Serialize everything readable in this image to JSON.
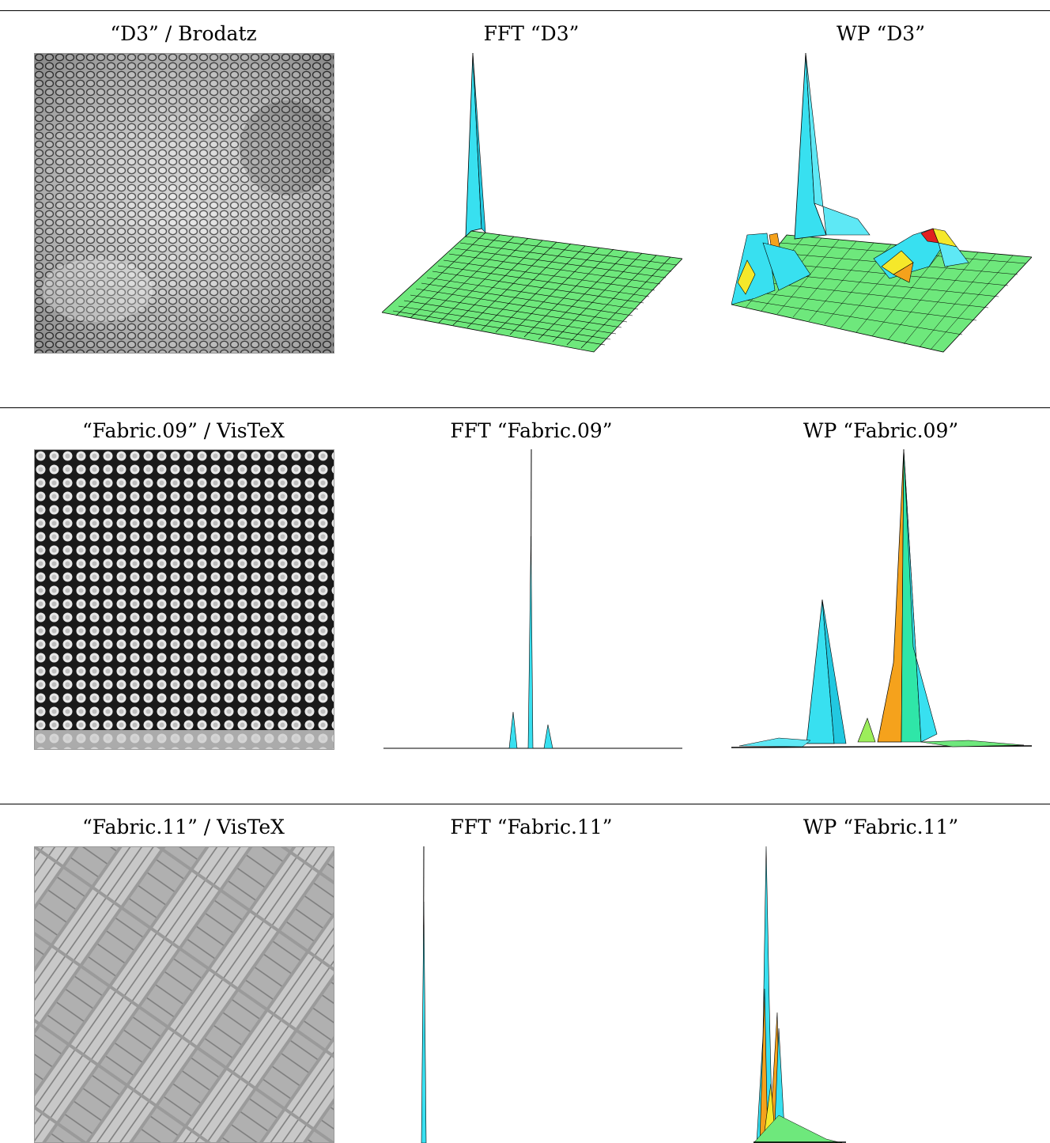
{
  "rows": [
    {
      "texture_caption": "“D3” / Brodatz",
      "fft_caption": "FFT “D3”",
      "wp_caption": "WP “D3”"
    },
    {
      "texture_caption": "“Fabric.09” / VisTeX",
      "fft_caption": "FFT “Fabric.09”",
      "wp_caption": "WP “Fabric.09”"
    },
    {
      "texture_caption": "“Fabric.11” / VisTeX",
      "fft_caption": "FFT “Fabric.11”",
      "wp_caption": "WP “Fabric.11”"
    }
  ],
  "colors": {
    "surface_green": "#6ee87c",
    "peak_cyan": "#38e0f0",
    "peak_orange": "#f5a21c",
    "peak_yellow": "#f5e82a",
    "peak_red": "#e02020",
    "mesh_line": "#000000"
  }
}
